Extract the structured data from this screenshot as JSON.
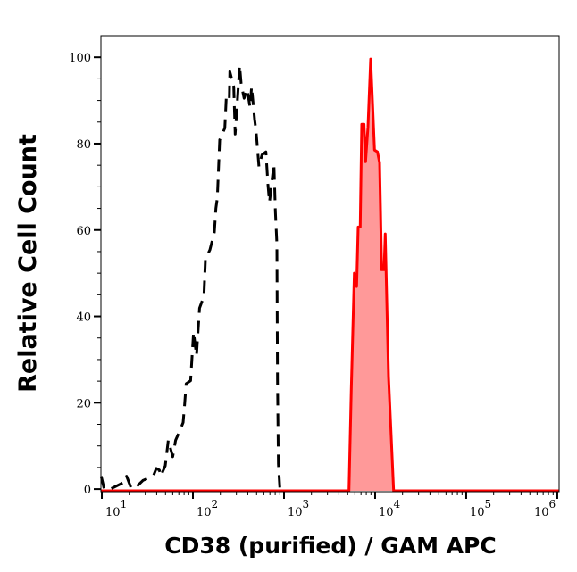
{
  "chart_data": {
    "type": "area",
    "title": "",
    "xlabel": "CD38 (purified) / GAM APC",
    "ylabel": "Relative Cell Count",
    "x_scale": "log",
    "xlim_log10": [
      0.99,
      6.02
    ],
    "ylim": [
      -0.6,
      105
    ],
    "grid": false,
    "x_ticks": [
      {
        "base": "10",
        "exp": "1",
        "value": 10
      },
      {
        "base": "10",
        "exp": "2",
        "value": 100
      },
      {
        "base": "10",
        "exp": "3",
        "value": 1000
      },
      {
        "base": "10",
        "exp": "4",
        "value": 10000
      },
      {
        "base": "10",
        "exp": "5",
        "value": 100000
      },
      {
        "base": "10",
        "exp": "6",
        "value": 1000000
      }
    ],
    "y_ticks": [
      "0",
      "20",
      "40",
      "60",
      "80",
      "100"
    ],
    "series": [
      {
        "style": "dashed",
        "color": "#000000",
        "fill": "none",
        "log10_x": [
          0.993,
          1.026,
          1.091,
          1.255,
          1.271,
          1.32,
          1.353,
          1.451,
          1.565,
          1.598,
          1.631,
          1.647,
          1.696,
          1.729,
          1.778,
          1.81,
          1.86,
          1.892,
          1.909,
          1.925,
          1.974,
          2.007,
          2.039,
          2.072,
          2.121,
          2.137,
          2.186,
          2.235,
          2.252,
          2.268,
          2.294,
          2.35,
          2.366,
          2.399,
          2.405,
          2.448,
          2.464,
          2.48,
          2.513,
          2.529,
          2.562,
          2.595,
          2.627,
          2.644,
          2.676,
          2.693,
          2.725,
          2.758,
          2.801,
          2.824,
          2.84,
          2.889,
          2.905,
          2.922,
          2.928,
          2.938,
          2.954,
          3.003
        ],
        "y": [
          3.0,
          0,
          0,
          1.7,
          3.0,
          0.3,
          0,
          2.0,
          3.0,
          4.8,
          4.4,
          3.0,
          5.4,
          11.3,
          7.5,
          11.3,
          13.7,
          15.4,
          19.6,
          24.4,
          25.1,
          36.4,
          30.9,
          41.9,
          44.7,
          53.3,
          55.4,
          59.5,
          65.0,
          67.4,
          80.9,
          83.6,
          90.5,
          89.8,
          96.7,
          93.2,
          82.2,
          87.4,
          98.1,
          93.9,
          90.5,
          92.6,
          88.4,
          93.2,
          85.7,
          82.9,
          74.7,
          77.4,
          78.1,
          70.5,
          66.4,
          75.4,
          64.3,
          56.8,
          25.1,
          5.8,
          0.3,
          0
        ]
      },
      {
        "style": "solid",
        "color": "#ff0000",
        "fill": "#ff9999",
        "log10_x": [
          0.99,
          3.713,
          3.738,
          3.772,
          3.797,
          3.814,
          3.836,
          3.853,
          3.879,
          3.895,
          3.922,
          3.951,
          3.993,
          4.026,
          4.049,
          4.072,
          4.098,
          4.111,
          4.147,
          4.203,
          6.02
        ],
        "y": [
          -0.4,
          -0.4,
          23.1,
          50.0,
          46.9,
          60.7,
          60.7,
          84.5,
          84.5,
          75.8,
          83.9,
          99.6,
          78.5,
          78.1,
          75.6,
          50.8,
          50.8,
          59.1,
          26.0,
          -0.4,
          -0.4
        ]
      }
    ]
  }
}
